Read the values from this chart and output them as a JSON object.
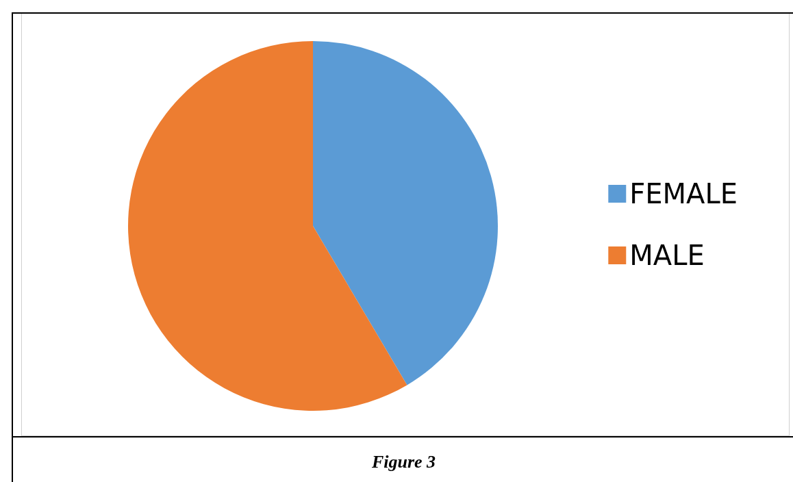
{
  "chart_data": {
    "type": "pie",
    "categories": [
      "FEMALE",
      "MALE"
    ],
    "values": [
      41.5,
      58.5
    ],
    "colors": [
      "#5b9bd5",
      "#ed7d31"
    ],
    "legend": "right",
    "annotations": [
      "Figure 3"
    ]
  }
}
